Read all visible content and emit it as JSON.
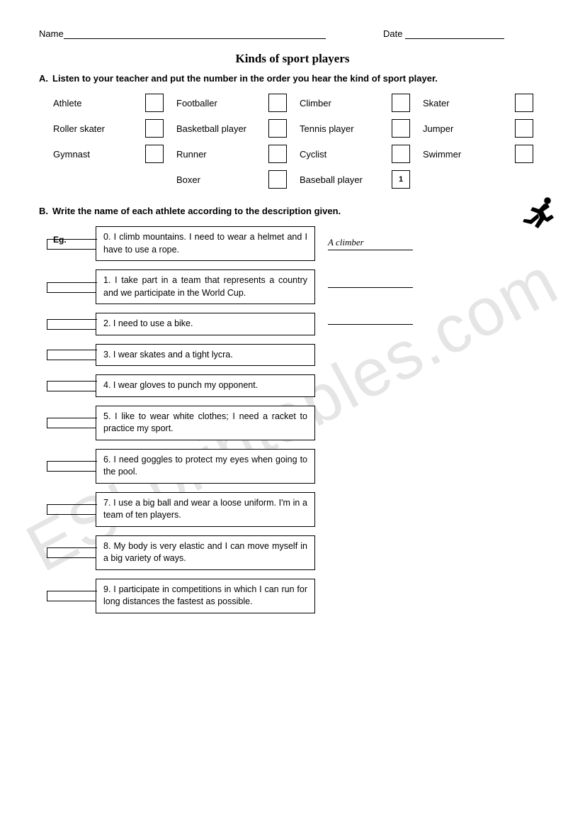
{
  "header": {
    "name_label": "Name",
    "date_label": "Date"
  },
  "title": "Kinds of sport players",
  "section_a": {
    "letter": "A.",
    "instruction": "Listen to your teacher and put the number in the order you hear the kind of sport player.",
    "rows": [
      [
        {
          "label": "Athlete",
          "value": ""
        },
        {
          "label": "Footballer",
          "value": ""
        },
        {
          "label": "Climber",
          "value": ""
        },
        {
          "label": "Skater",
          "value": ""
        }
      ],
      [
        {
          "label": "Roller skater",
          "value": ""
        },
        {
          "label": "Basketball player",
          "value": ""
        },
        {
          "label": "Tennis player",
          "value": ""
        },
        {
          "label": "Jumper",
          "value": ""
        }
      ],
      [
        {
          "label": "Gymnast",
          "value": ""
        },
        {
          "label": "Runner",
          "value": ""
        },
        {
          "label": "Cyclist",
          "value": ""
        },
        {
          "label": "Swimmer",
          "value": ""
        }
      ],
      [
        {
          "label": "",
          "value": "",
          "empty": true
        },
        {
          "label": "Boxer",
          "value": ""
        },
        {
          "label": "Baseball player",
          "value": "1"
        },
        {
          "label": "",
          "value": "",
          "empty": true
        }
      ]
    ]
  },
  "section_b": {
    "letter": "B.",
    "instruction": "Write the name of each athlete according to the description given.",
    "eg_label": "Eg.",
    "items": [
      {
        "num": "0",
        "text": "0. I climb mountains. I need to wear a helmet and I have to use a rope.",
        "answer": "A climber",
        "show_answer": true
      },
      {
        "num": "1",
        "text": "1. I take part in a team that represents a country and we participate in the World Cup.",
        "answer": "",
        "show_answer": true
      },
      {
        "num": "2",
        "text": "2. I need to use a bike.",
        "answer": "",
        "show_answer": true
      },
      {
        "num": "3",
        "text": "3. I wear skates and a tight lycra.",
        "answer": "",
        "show_answer": false
      },
      {
        "num": "4",
        "text": "4. I wear gloves to punch my opponent.",
        "answer": "",
        "show_answer": false
      },
      {
        "num": "5",
        "text": "5. I like to wear white clothes; I need a racket to practice my sport.",
        "answer": "",
        "show_answer": false
      },
      {
        "num": "6",
        "text": "6. I need goggles to protect my eyes when going to the pool.",
        "answer": "",
        "show_answer": false
      },
      {
        "num": "7",
        "text": "7. I use a big ball and wear a loose uniform. I'm in a team of ten players.",
        "answer": "",
        "show_answer": false
      },
      {
        "num": "8",
        "text": "8. My body is very elastic and I can move myself in a big variety of ways.",
        "answer": "",
        "show_answer": false
      },
      {
        "num": "9",
        "text": "9. I participate in competitions in which I can run for long distances the fastest as possible.",
        "answer": "",
        "show_answer": false
      }
    ]
  },
  "watermark": "ESLprintables.com"
}
